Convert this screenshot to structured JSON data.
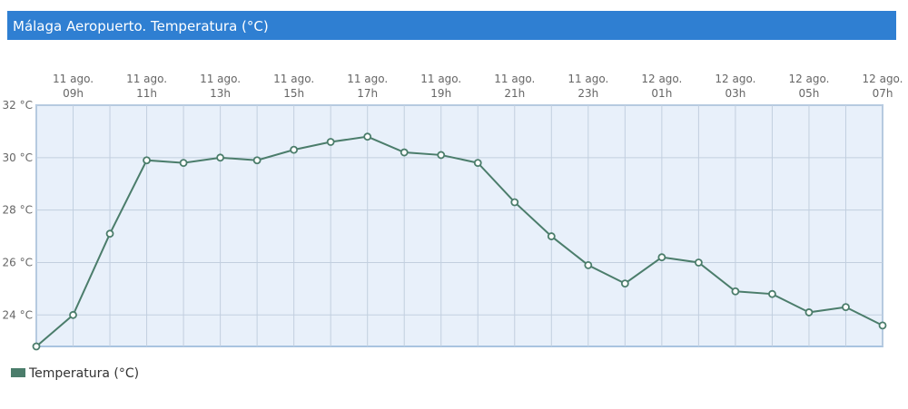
{
  "chart_data": {
    "type": "line",
    "title": "Málaga Aeropuerto. Temperatura (°C)",
    "categories": [
      null,
      [
        "11 ago.",
        "09h"
      ],
      null,
      [
        "11 ago.",
        "11h"
      ],
      null,
      [
        "11 ago.",
        "13h"
      ],
      null,
      [
        "11 ago.",
        "15h"
      ],
      null,
      [
        "11 ago.",
        "17h"
      ],
      null,
      [
        "11 ago.",
        "19h"
      ],
      null,
      [
        "11 ago.",
        "21h"
      ],
      null,
      [
        "11 ago.",
        "23h"
      ],
      null,
      [
        "12 ago.",
        "01h"
      ],
      null,
      [
        "12 ago.",
        "03h"
      ],
      null,
      [
        "12 ago.",
        "05h"
      ],
      null,
      [
        "12 ago.",
        "07h"
      ]
    ],
    "series": [
      {
        "name": "Temperatura (°C)",
        "color": "#4b7d6b",
        "values": [
          22.8,
          24.0,
          27.1,
          29.9,
          29.8,
          30.0,
          29.9,
          30.3,
          30.6,
          30.8,
          30.2,
          30.1,
          29.8,
          28.3,
          27.0,
          25.9,
          25.2,
          26.2,
          26.0,
          24.9,
          24.8,
          24.1,
          24.3,
          23.6
        ]
      }
    ],
    "ylim": [
      22.8,
      32
    ],
    "yticks": [
      {
        "value": 24,
        "label": "24 °C"
      },
      {
        "value": 26,
        "label": "26 °C"
      },
      {
        "value": 28,
        "label": "28 °C"
      },
      {
        "value": 30,
        "label": "30 °C"
      },
      {
        "value": 32,
        "label": "32 °C"
      }
    ],
    "grid": true
  }
}
